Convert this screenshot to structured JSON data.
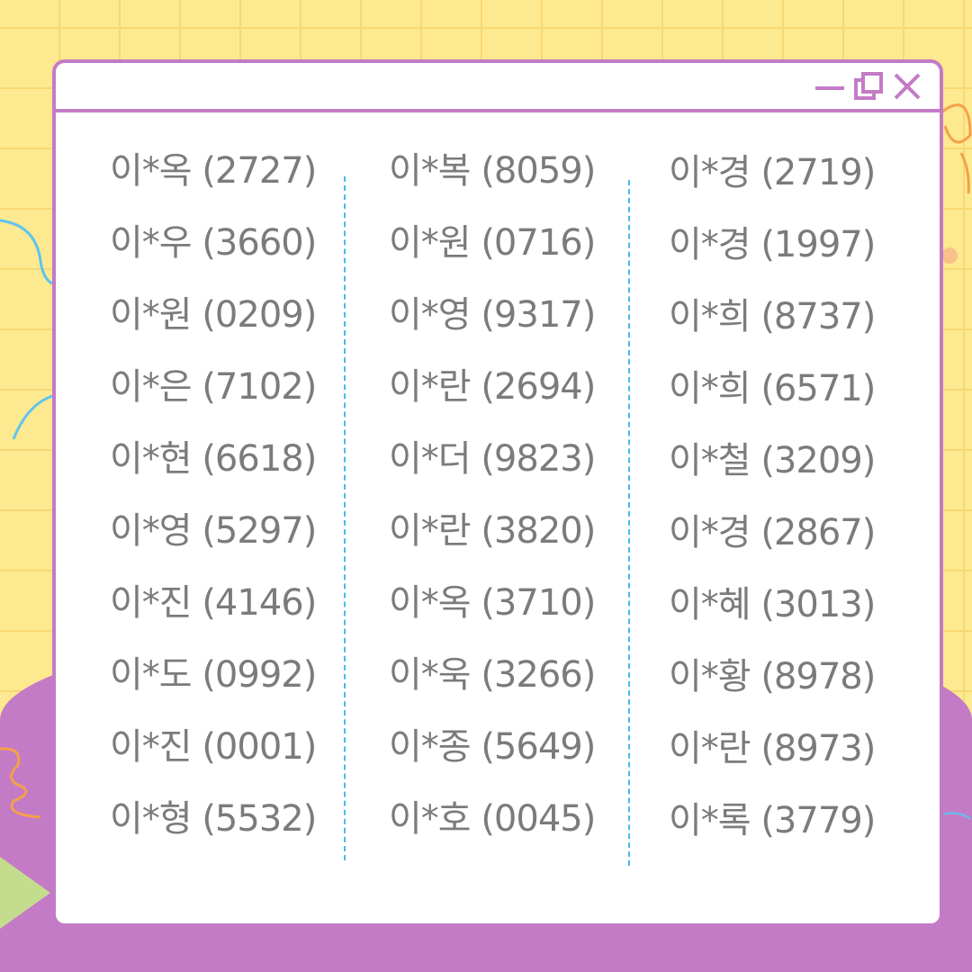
{
  "window": {
    "controls": [
      {
        "name": "minimize",
        "icon": "minimize-icon"
      },
      {
        "name": "maximize",
        "icon": "restore-icon"
      },
      {
        "name": "close",
        "icon": "close-icon"
      }
    ],
    "accent_color": "#c47bc6"
  },
  "columns": [
    {
      "items": [
        "이*옥 (2727)",
        "이*우 (3660)",
        "이*원 (0209)",
        "이*은 (7102)",
        "이*현 (6618)",
        "이*영 (5297)",
        "이*진 (4146)",
        "이*도 (0992)",
        "이*진 (0001)",
        "이*형 (5532)"
      ]
    },
    {
      "items": [
        "이*복 (8059)",
        "이*원 (0716)",
        "이*영 (9317)",
        "이*란 (2694)",
        "이*더 (9823)",
        "이*란 (3820)",
        "이*옥 (3710)",
        "이*욱 (3266)",
        "이*종 (5649)",
        "이*호 (0045)"
      ]
    },
    {
      "items": [
        "이*경 (2719)",
        "이*경 (1997)",
        "이*희 (8737)",
        "이*희 (6571)",
        "이*철 (3209)",
        "이*경 (2867)",
        "이*혜 (3013)",
        "이*황 (8978)",
        "이*란 (8973)",
        "이*록 (3779)"
      ]
    }
  ]
}
